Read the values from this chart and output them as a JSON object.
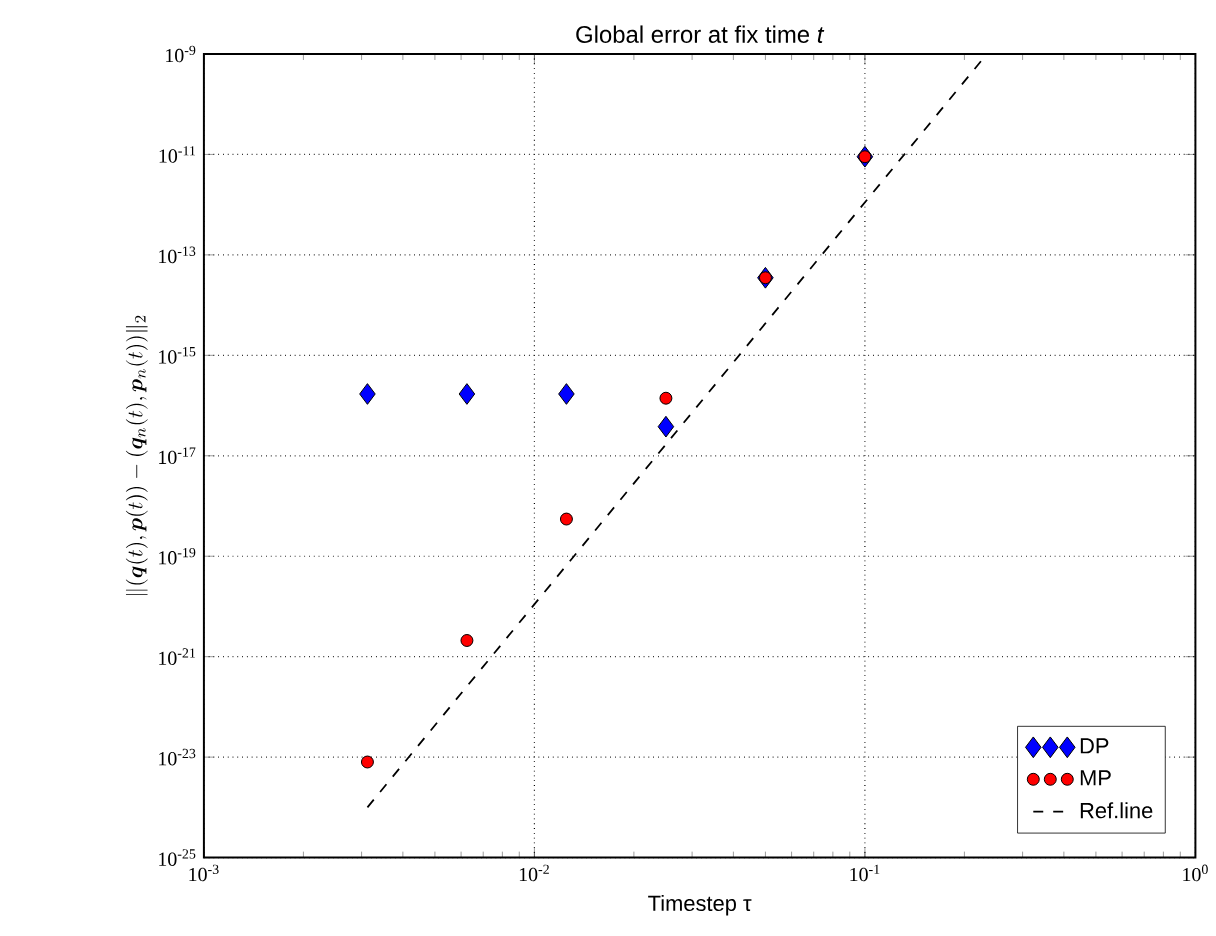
{
  "chart_data": {
    "type": "scatter",
    "title": "Global error at fix time *t*",
    "xlabel": "Timestep τ",
    "ylabel": "\\|(\\bm{q}(t),\\bm{p}(t))-(\\bm{q}_n(t),\\bm{p}_n(t))\\|_2",
    "log": "xy",
    "grid": true,
    "legend": "bottom right",
    "xlim": [
      0.001,
      1
    ],
    "ylim": [
      1e-25,
      1e-09
    ],
    "xticks": [
      {
        "value": 0.001,
        "label": "10$^{-3}$"
      },
      {
        "value": 0.01,
        "label": "10$^{-2}$"
      },
      {
        "value": 0.1,
        "label": "10$^{-1}$"
      },
      {
        "value": 1,
        "label": "10$^{0}$"
      }
    ],
    "yticks": [
      {
        "value": 1e-25,
        "label": "10$^{-25}$"
      },
      {
        "value": 1e-23,
        "label": "10$^{-23}$"
      },
      {
        "value": 1e-21,
        "label": "10$^{-21}$"
      },
      {
        "value": 1e-19,
        "label": "10$^{-19}$"
      },
      {
        "value": 1e-17,
        "label": "10$^{-17}$"
      },
      {
        "value": 1e-15,
        "label": "10$^{-15}$"
      },
      {
        "value": 1e-13,
        "label": "10$^{-13}$"
      },
      {
        "value": 1e-11,
        "label": "10$^{-11}$"
      },
      {
        "value": 1e-09,
        "label": "10$^{-9}$"
      }
    ],
    "x": [
      0.003125,
      0.00625,
      0.0125,
      0.025,
      0.05,
      0.1
    ],
    "series": [
      {
        "name": "DP",
        "color": "#0000ff",
        "marker": "diamond",
        "values": [
          1.7e-16,
          1.7e-16,
          1.7e-16,
          3.8e-17,
          3.5e-14,
          9e-12
        ]
      },
      {
        "name": "MP",
        "color": "#ff0000",
        "marker": "circle",
        "values": [
          8e-24,
          2.1e-21,
          5.5e-19,
          1.4e-16,
          3.5e-14,
          9e-12
        ]
      },
      {
        "name": "Ref.line",
        "type": "line",
        "color": "#000000",
        "line_style": "dashed",
        "marker": "none",
        "x": [
          0.003125,
          0.234
        ],
        "values": [
          1e-24,
          1e-09
        ]
      }
    ]
  }
}
